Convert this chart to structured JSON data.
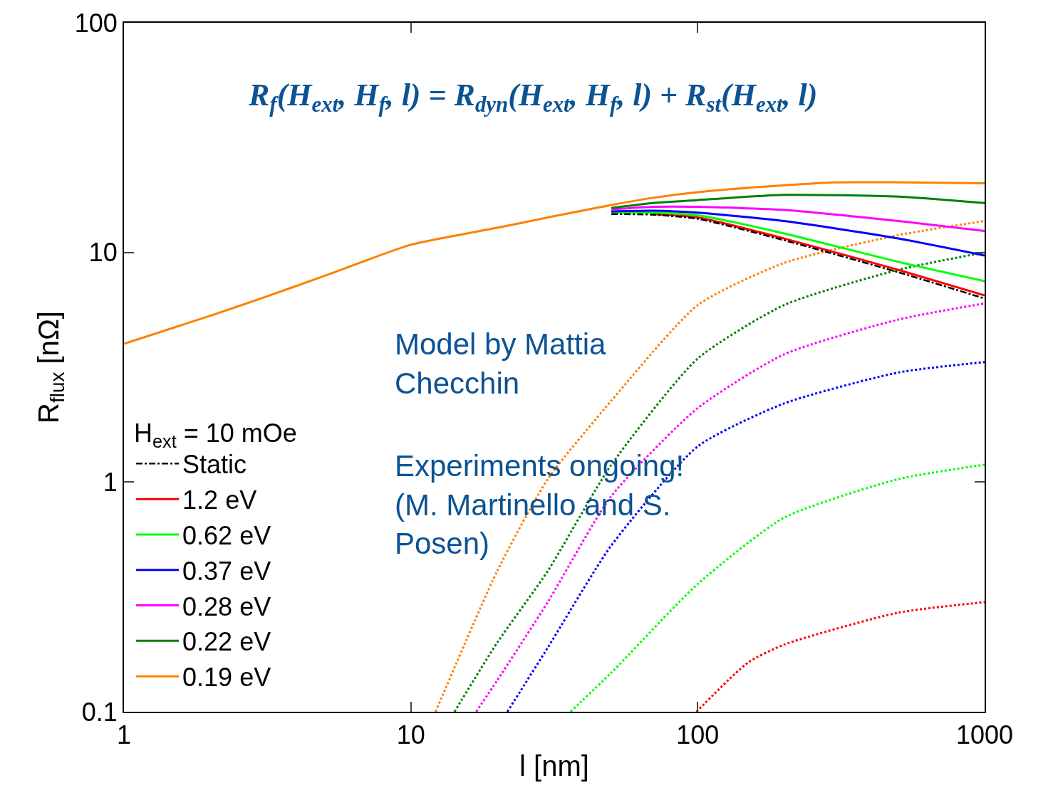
{
  "chart_data": {
    "type": "line",
    "xlabel": "l [nm]",
    "ylabel": "R$_{flux}$ [nΩ]",
    "legend_title": "H$_{ext}$ = 10 mOe",
    "log": "xy",
    "grid": false,
    "legend": "bottom left",
    "marker": "none",
    "xlim": [
      1,
      1000
    ],
    "ylim": [
      0.1,
      100
    ],
    "xticks": [
      1,
      10,
      100,
      1000
    ],
    "yticks": [
      0.1,
      1,
      10,
      100
    ],
    "annotations": [
      "R$_{f}$(H$_{ext}$, H$_{f}$, l) = R$_{dyn}$(H$_{ext}$, H$_{f}$, l) + R$_{st}$(H$_{ext}$, l)",
      "Model by Mattia\nChecchin",
      "Experiments ongoing!\n(M. Martinello and S.\nPosen)"
    ],
    "series": [
      {
        "name": "Static",
        "color": "#000000",
        "line_style": "dashed",
        "x": [
          50,
          70,
          100,
          200,
          500,
          1000
        ],
        "values": [
          14.7,
          14.6,
          14.0,
          11.3,
          8.2,
          6.3
        ]
      },
      {
        "name": "1.2 eV",
        "color": "#ff0000",
        "line_style": "solid",
        "x": [
          70,
          100,
          200,
          500,
          1000
        ],
        "values": [
          14.7,
          14.2,
          11.5,
          8.4,
          6.5
        ]
      },
      {
        "name": "0.62 eV",
        "color": "#00ff00",
        "line_style": "solid",
        "x": [
          50,
          70,
          100,
          200,
          500,
          1000
        ],
        "values": [
          14.9,
          14.9,
          14.5,
          12.1,
          9.1,
          7.5
        ]
      },
      {
        "name": "0.37 eV",
        "color": "#0000ff",
        "line_style": "solid",
        "x": [
          50,
          70,
          100,
          200,
          500,
          1000
        ],
        "values": [
          15.1,
          15.2,
          14.9,
          13.7,
          11.5,
          9.7
        ]
      },
      {
        "name": "0.28 eV",
        "color": "#ff00ff",
        "line_style": "solid",
        "x": [
          50,
          70,
          100,
          200,
          500,
          1000
        ],
        "values": [
          15.4,
          15.8,
          15.8,
          15.3,
          13.7,
          12.4
        ]
      },
      {
        "name": "0.22 eV",
        "color": "#008000",
        "line_style": "solid",
        "x": [
          50,
          70,
          100,
          200,
          500,
          1000
        ],
        "values": [
          15.6,
          16.4,
          16.9,
          17.8,
          17.5,
          16.4
        ]
      },
      {
        "name": "0.19 eV",
        "color": "#ff8000",
        "line_style": "solid",
        "x": [
          1,
          2,
          3,
          5,
          10,
          20,
          30,
          50,
          70,
          100,
          200,
          300,
          500,
          1000
        ],
        "values": [
          4.0,
          5.3,
          6.3,
          7.9,
          10.8,
          12.8,
          14.2,
          16.1,
          17.3,
          18.3,
          19.6,
          20.2,
          20.2,
          20.0
        ]
      },
      {
        "color": "#ff0000",
        "line_style": "dotted",
        "x": [
          99,
          150,
          200,
          500,
          1000
        ],
        "values": [
          0.1,
          0.164,
          0.196,
          0.27,
          0.3
        ]
      },
      {
        "color": "#00ff00",
        "line_style": "dotted",
        "x": [
          36,
          50,
          100,
          200,
          500,
          1000
        ],
        "values": [
          0.1,
          0.148,
          0.36,
          0.7,
          1.03,
          1.19
        ]
      },
      {
        "color": "#0000ff",
        "line_style": "dotted",
        "x": [
          21.7,
          30,
          50,
          100,
          200,
          500,
          1000
        ],
        "values": [
          0.1,
          0.19,
          0.53,
          1.43,
          2.2,
          3.0,
          3.33
        ]
      },
      {
        "color": "#ff00ff",
        "line_style": "dotted",
        "x": [
          16.9,
          20,
          30,
          50,
          100,
          200,
          500,
          1000
        ],
        "values": [
          0.1,
          0.137,
          0.3,
          0.87,
          2.1,
          3.6,
          5.1,
          6.0
        ]
      },
      {
        "color": "#008000",
        "line_style": "dotted",
        "x": [
          14.2,
          20,
          30,
          50,
          100,
          200,
          500,
          1000
        ],
        "values": [
          0.1,
          0.2,
          0.41,
          1.19,
          3.45,
          5.9,
          8.4,
          10.0
        ]
      },
      {
        "color": "#ff8000",
        "line_style": "dotted",
        "x": [
          12.2,
          20,
          30,
          50,
          100,
          200,
          500,
          1000
        ],
        "values": [
          0.1,
          0.41,
          1.03,
          2.26,
          5.9,
          9.0,
          11.9,
          13.7
        ]
      }
    ]
  }
}
